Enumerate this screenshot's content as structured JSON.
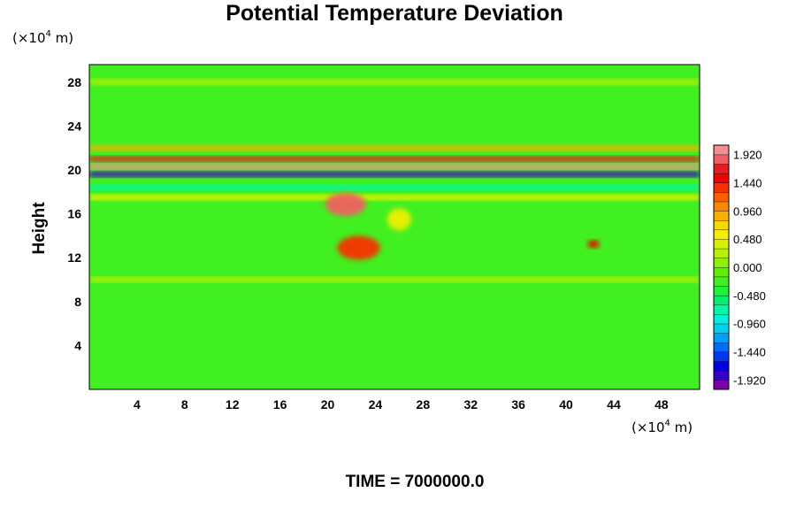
{
  "chart_data": {
    "type": "heatmap",
    "title": "Potential Temperature Deviation",
    "ylabel": "Height",
    "x_unit": {
      "base": "(×10",
      "exp": "4",
      "tail": " m)"
    },
    "y_unit": {
      "base": "(×10",
      "exp": "4",
      "tail": " m)"
    },
    "xlim": [
      0,
      51.2
    ],
    "ylim": [
      0,
      29.6
    ],
    "x_ticks": [
      4,
      8,
      12,
      16,
      20,
      24,
      28,
      32,
      36,
      40,
      44,
      48
    ],
    "y_ticks": [
      4,
      8,
      12,
      16,
      20,
      24,
      28
    ],
    "colorbar": {
      "range": [
        -2.08,
        2.08
      ],
      "levels": 26,
      "tick_labels": [
        "1.920",
        "1.440",
        "0.960",
        "0.480",
        "0.000",
        "-0.480",
        "-0.960",
        "-1.440",
        "-1.920"
      ],
      "tick_values": [
        1.92,
        1.44,
        0.96,
        0.48,
        0.0,
        -0.48,
        -0.96,
        -1.44,
        -1.92
      ],
      "colors": [
        "#7a00a8",
        "#3a00c0",
        "#0000e6",
        "#0038f0",
        "#006cf6",
        "#00a0f8",
        "#00d0f0",
        "#00f0d8",
        "#00f8a8",
        "#00f070",
        "#20f040",
        "#40f020",
        "#60f000",
        "#90f000",
        "#b8f000",
        "#d8f000",
        "#f0f000",
        "#f8d800",
        "#f8b000",
        "#f88800",
        "#f86000",
        "#f83000",
        "#f00000",
        "#e02020",
        "#f06060",
        "#f09090"
      ]
    },
    "features": [
      {
        "x0": 0,
        "x1": 51.2,
        "y": 20.3,
        "value": 2.0
      },
      {
        "x0": 0,
        "x1": 51.2,
        "y": 19.6,
        "value": -1.9
      },
      {
        "x0": 0,
        "x1": 51.2,
        "y": 21.0,
        "value": 1.6
      },
      {
        "x0": 0,
        "x1": 51.2,
        "y": 22.0,
        "value": 0.9
      },
      {
        "x0": 0,
        "x1": 51.2,
        "y": 18.4,
        "value": -0.7
      },
      {
        "x0": 0,
        "x1": 51.2,
        "y": 17.5,
        "value": 0.6
      },
      {
        "x0": 0,
        "x1": 51.2,
        "y": 10.0,
        "value": 0.2
      },
      {
        "x0": 0,
        "x1": 51.2,
        "y": 28.0,
        "value": 0.3
      },
      {
        "x0": 19.8,
        "x1": 23.2,
        "y": 15.8,
        "y1": 17.9,
        "value": 1.9
      },
      {
        "x0": 20.8,
        "x1": 24.4,
        "y": 11.8,
        "y1": 14.0,
        "value": 1.4
      },
      {
        "x0": 41.8,
        "x1": 42.8,
        "y": 12.9,
        "y1": 13.6,
        "value": 1.5
      },
      {
        "x0": 25.0,
        "x1": 27.0,
        "y": 14.5,
        "y1": 16.5,
        "value": 0.6
      }
    ]
  },
  "footer": {
    "time_label": "TIME = 7000000.0"
  }
}
